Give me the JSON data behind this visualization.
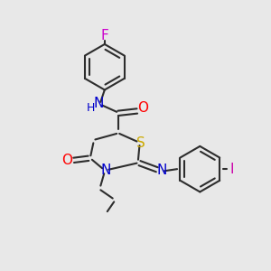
{
  "bg_color": "#e8e8e8",
  "bond_color": "#2d2d2d",
  "bond_width": 1.5,
  "figure_size": [
    3.0,
    3.0
  ],
  "dpi": 100,
  "colors": {
    "F": "#cc00cc",
    "O": "#ff0000",
    "N": "#0000cc",
    "S": "#ccaa00",
    "I": "#cc00aa",
    "C": "#2d2d2d"
  }
}
